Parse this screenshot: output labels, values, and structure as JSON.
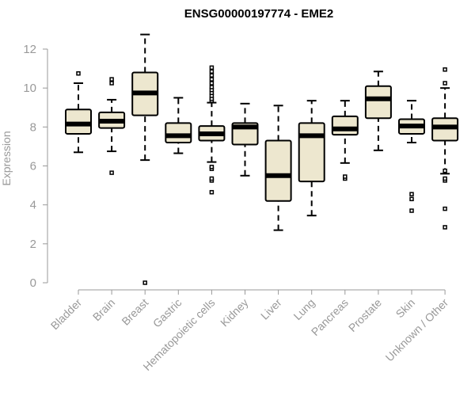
{
  "chart_data": {
    "type": "box",
    "title": "ENSG00000197774 - EME2",
    "ylabel": "Expression",
    "ylim": [
      0,
      12
    ],
    "yticks": [
      "0",
      "2",
      "4",
      "6",
      "8",
      "10",
      "12"
    ],
    "colors": {
      "box_fill": "#EDE7CF",
      "stroke": "#000000",
      "axis": "#999999"
    },
    "categories": [
      "Bladder",
      "Brain",
      "Breast",
      "Gastric",
      "Hematopoietic cells",
      "Kidney",
      "Liver",
      "Lung",
      "Pancreas",
      "Prostate",
      "Skin",
      "Unknown / Other"
    ],
    "boxes": [
      {
        "min": 6.7,
        "q1": 7.65,
        "median": 8.15,
        "q3": 8.9,
        "max": 10.25,
        "outliers": [
          10.75
        ]
      },
      {
        "min": 6.75,
        "q1": 7.95,
        "median": 8.3,
        "q3": 8.75,
        "max": 9.4,
        "outliers": [
          5.65,
          10.25,
          10.45
        ]
      },
      {
        "min": 6.3,
        "q1": 8.6,
        "median": 9.75,
        "q3": 10.8,
        "max": 12.75,
        "outliers": [
          0.0
        ]
      },
      {
        "min": 6.65,
        "q1": 7.2,
        "median": 7.55,
        "q3": 8.2,
        "max": 9.5,
        "outliers": []
      },
      {
        "min": 6.2,
        "q1": 7.3,
        "median": 7.65,
        "q3": 8.05,
        "max": 9.25,
        "outliers": [
          4.65,
          5.25,
          5.35,
          5.85,
          5.95,
          9.35,
          9.45,
          9.6,
          9.75,
          9.9,
          10.05,
          10.25,
          10.45,
          10.65,
          10.85,
          11.05
        ]
      },
      {
        "min": 5.5,
        "q1": 7.1,
        "median": 8.0,
        "q3": 8.2,
        "max": 9.2,
        "outliers": []
      },
      {
        "min": 2.7,
        "q1": 4.2,
        "median": 5.5,
        "q3": 7.3,
        "max": 9.1,
        "outliers": []
      },
      {
        "min": 3.45,
        "q1": 5.2,
        "median": 7.55,
        "q3": 8.2,
        "max": 9.35,
        "outliers": []
      },
      {
        "min": 6.15,
        "q1": 7.6,
        "median": 7.9,
        "q3": 8.55,
        "max": 9.35,
        "outliers": [
          5.35,
          5.45
        ]
      },
      {
        "min": 6.8,
        "q1": 8.45,
        "median": 9.45,
        "q3": 10.1,
        "max": 10.85,
        "outliers": []
      },
      {
        "min": 7.2,
        "q1": 7.65,
        "median": 8.05,
        "q3": 8.4,
        "max": 9.35,
        "outliers": [
          3.7,
          4.3,
          4.55
        ]
      },
      {
        "min": 5.6,
        "q1": 7.3,
        "median": 8.0,
        "q3": 8.45,
        "max": 10.0,
        "outliers": [
          2.85,
          3.8,
          5.25,
          5.35,
          5.75,
          10.25,
          10.95
        ]
      }
    ]
  }
}
